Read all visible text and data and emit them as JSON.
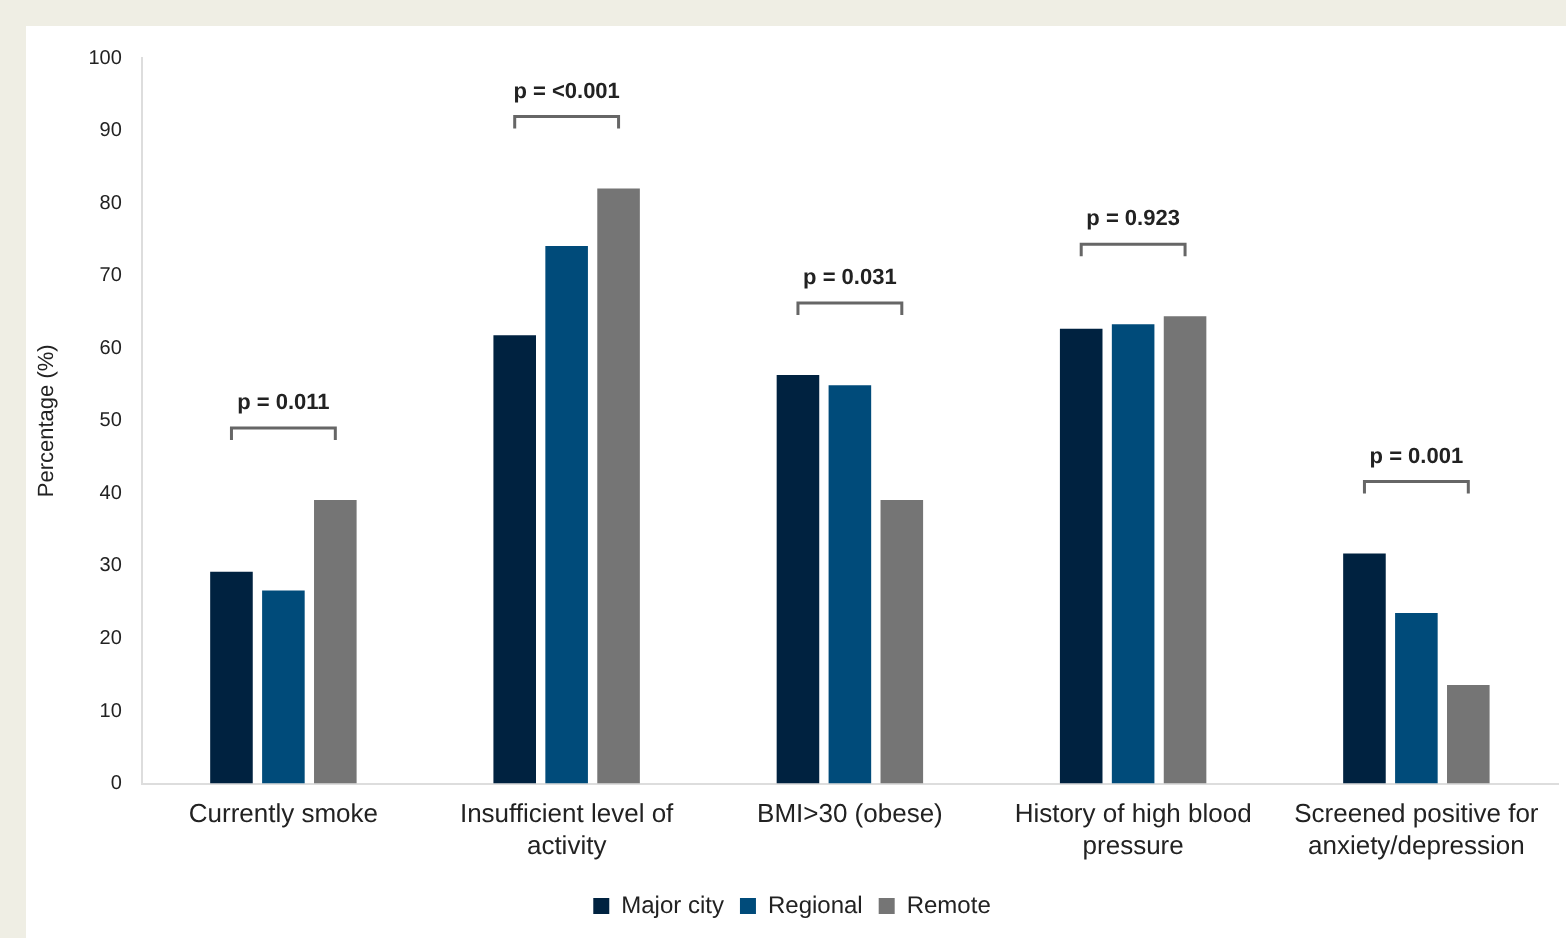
{
  "chart_data": {
    "type": "bar",
    "ylabel": "Percentage (%)",
    "categories": [
      "Currently smoke",
      "Insufficient level of activity",
      "BMI>30 (obese)",
      "History of high blood pressure",
      "Screened positive for anxiety/depression"
    ],
    "series": [
      {
        "name": "Major city",
        "color": "#002240",
        "values": [
          29.2,
          61.8,
          56.3,
          62.7,
          31.7
        ]
      },
      {
        "name": "Regional",
        "color": "#004b7a",
        "values": [
          26.6,
          74.1,
          54.9,
          63.3,
          23.5
        ]
      },
      {
        "name": "Remote",
        "color": "#757575",
        "values": [
          39.1,
          82.0,
          39.1,
          64.4,
          13.6
        ]
      }
    ],
    "ylim": [
      0,
      100
    ],
    "yticks": [
      0,
      10,
      20,
      30,
      40,
      50,
      60,
      70,
      80,
      90,
      100
    ],
    "grid": false,
    "legend": "bottom",
    "annotations": [
      "p = 0.011",
      "p = <0.001",
      "p = 0.031",
      "p = 0.923",
      "p = 0.001"
    ]
  }
}
